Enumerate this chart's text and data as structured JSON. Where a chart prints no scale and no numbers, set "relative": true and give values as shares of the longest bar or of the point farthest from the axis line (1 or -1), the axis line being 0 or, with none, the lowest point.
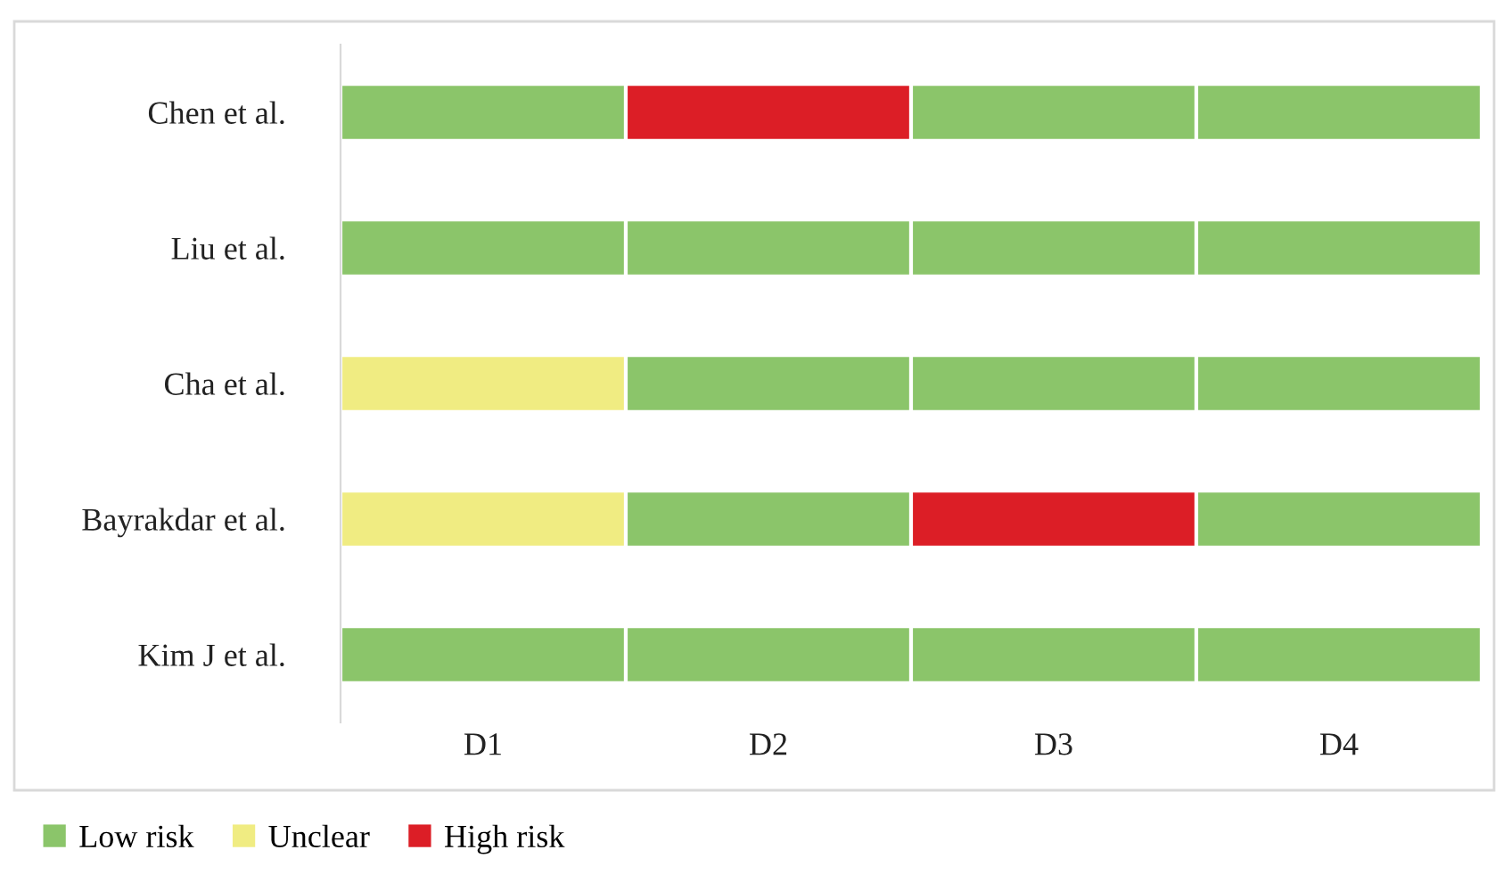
{
  "chart_data": {
    "type": "bar",
    "orientation": "horizontal",
    "stacked": true,
    "relative": true,
    "categories": [
      "Chen et al.",
      "Liu et al.",
      "Cha et al.",
      "Bayrakdar et al.",
      "Kim J et al."
    ],
    "series": [
      {
        "values": [
          0.25,
          0.25,
          0.25,
          0.25,
          0.25
        ],
        "colors": [
          "#8bc56a",
          "#8bc56a",
          "#f0ec82",
          "#f0ec82",
          "#8bc56a"
        ]
      },
      {
        "values": [
          0.25,
          0.25,
          0.25,
          0.25,
          0.25
        ],
        "colors": [
          "#dc1e26",
          "#8bc56a",
          "#8bc56a",
          "#8bc56a",
          "#8bc56a"
        ]
      },
      {
        "values": [
          0.25,
          0.25,
          0.25,
          0.25,
          0.25
        ],
        "colors": [
          "#8bc56a",
          "#8bc56a",
          "#8bc56a",
          "#dc1e26",
          "#8bc56a"
        ]
      },
      {
        "values": [
          0.25,
          0.25,
          0.25,
          0.25,
          0.25
        ],
        "colors": [
          "#8bc56a",
          "#8bc56a",
          "#8bc56a",
          "#8bc56a",
          "#8bc56a"
        ]
      },
      {
        "name": "Low risk",
        "color": "#8bc56a",
        "values": [
          null,
          null,
          null,
          null,
          null
        ]
      },
      {
        "name": "Unclear",
        "color": "#f0ec82",
        "values": [
          null,
          null,
          null,
          null,
          null
        ]
      },
      {
        "name": "High risk",
        "color": "#dc1e26",
        "values": [
          null,
          null,
          null,
          null,
          null
        ]
      }
    ],
    "annotations": [
      "D1",
      "D2",
      "D3",
      "D4"
    ],
    "legend": "bottom left",
    "grid": false
  }
}
